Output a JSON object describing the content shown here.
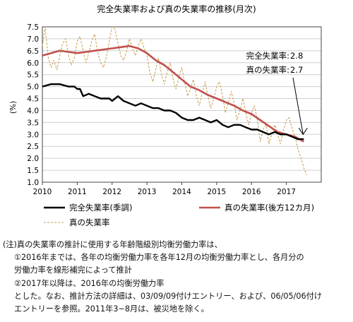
{
  "chart_data": {
    "type": "line",
    "title": "完全失業率および真の失業率の推移(月次)",
    "ylabel": "(%)",
    "xlabel": "",
    "ylim": [
      1.0,
      7.5
    ],
    "y_ticks": [
      "1.0",
      "1.5",
      "2.0",
      "2.5",
      "3.0",
      "3.5",
      "4.0",
      "4.5",
      "5.0",
      "5.5",
      "6.0",
      "6.5",
      "7.0",
      "7.5"
    ],
    "x_range": [
      2010.0,
      2018.0
    ],
    "x_ticks": [
      "2010",
      "2011",
      "2012",
      "2013",
      "2014",
      "2015",
      "2016",
      "2017"
    ],
    "grid": true,
    "legend_position": "bottom",
    "series": [
      {
        "name": "完全失業率(季調)",
        "color": "#000000",
        "style": "solid",
        "points": [
          [
            2010.0,
            5.0
          ],
          [
            2010.25,
            5.1
          ],
          [
            2010.5,
            5.1
          ],
          [
            2010.75,
            5.0
          ],
          [
            2010.92,
            5.0
          ],
          [
            2011.0,
            4.9
          ],
          [
            2011.08,
            4.9
          ],
          [
            2011.17,
            4.6
          ],
          [
            2011.33,
            4.7
          ],
          [
            2011.5,
            4.6
          ],
          [
            2011.67,
            4.5
          ],
          [
            2011.83,
            4.5
          ],
          [
            2011.92,
            4.5
          ],
          [
            2012.0,
            4.4
          ],
          [
            2012.17,
            4.6
          ],
          [
            2012.33,
            4.4
          ],
          [
            2012.5,
            4.3
          ],
          [
            2012.67,
            4.2
          ],
          [
            2012.83,
            4.3
          ],
          [
            2013.0,
            4.2
          ],
          [
            2013.17,
            4.1
          ],
          [
            2013.33,
            4.1
          ],
          [
            2013.5,
            4.0
          ],
          [
            2013.67,
            4.0
          ],
          [
            2013.83,
            3.9
          ],
          [
            2014.0,
            3.7
          ],
          [
            2014.17,
            3.6
          ],
          [
            2014.33,
            3.6
          ],
          [
            2014.5,
            3.7
          ],
          [
            2014.67,
            3.6
          ],
          [
            2014.83,
            3.5
          ],
          [
            2015.0,
            3.6
          ],
          [
            2015.17,
            3.4
          ],
          [
            2015.33,
            3.3
          ],
          [
            2015.5,
            3.4
          ],
          [
            2015.67,
            3.4
          ],
          [
            2015.83,
            3.3
          ],
          [
            2016.0,
            3.2
          ],
          [
            2016.17,
            3.2
          ],
          [
            2016.33,
            3.1
          ],
          [
            2016.5,
            3.0
          ],
          [
            2016.67,
            3.1
          ],
          [
            2016.83,
            3.0
          ],
          [
            2017.0,
            3.0
          ],
          [
            2017.17,
            2.9
          ],
          [
            2017.33,
            2.8
          ],
          [
            2017.5,
            2.8
          ]
        ]
      },
      {
        "name": "真の失業率(後方12カ月)",
        "color": "#c0504d",
        "style": "solid",
        "points": [
          [
            2010.0,
            6.3
          ],
          [
            2010.25,
            6.4
          ],
          [
            2010.5,
            6.5
          ],
          [
            2010.75,
            6.45
          ],
          [
            2011.0,
            6.4
          ],
          [
            2011.25,
            6.45
          ],
          [
            2011.5,
            6.5
          ],
          [
            2011.75,
            6.55
          ],
          [
            2012.0,
            6.6
          ],
          [
            2012.25,
            6.65
          ],
          [
            2012.5,
            6.7
          ],
          [
            2012.75,
            6.6
          ],
          [
            2013.0,
            6.4
          ],
          [
            2013.25,
            6.1
          ],
          [
            2013.5,
            5.9
          ],
          [
            2013.75,
            5.6
          ],
          [
            2014.0,
            5.3
          ],
          [
            2014.25,
            5.0
          ],
          [
            2014.5,
            4.85
          ],
          [
            2014.75,
            4.65
          ],
          [
            2015.0,
            4.5
          ],
          [
            2015.25,
            4.35
          ],
          [
            2015.5,
            4.2
          ],
          [
            2015.75,
            4.0
          ],
          [
            2016.0,
            3.85
          ],
          [
            2016.25,
            3.6
          ],
          [
            2016.5,
            3.35
          ],
          [
            2016.75,
            3.1
          ],
          [
            2017.0,
            3.0
          ],
          [
            2017.25,
            2.9
          ],
          [
            2017.5,
            2.7
          ]
        ]
      },
      {
        "name": "真の失業率",
        "color": "#c9a35a",
        "style": "dashed",
        "points": [
          [
            2010.0,
            6.7
          ],
          [
            2010.08,
            7.5
          ],
          [
            2010.17,
            6.2
          ],
          [
            2010.25,
            5.8
          ],
          [
            2010.33,
            6.1
          ],
          [
            2010.42,
            5.7
          ],
          [
            2010.5,
            6.3
          ],
          [
            2010.58,
            6.8
          ],
          [
            2010.67,
            7.0
          ],
          [
            2010.75,
            6.3
          ],
          [
            2010.83,
            5.9
          ],
          [
            2010.92,
            6.2
          ],
          [
            2011.0,
            6.9
          ],
          [
            2011.08,
            7.1
          ],
          [
            2011.17,
            6.5
          ],
          [
            2011.25,
            6.0
          ],
          [
            2011.33,
            6.4
          ],
          [
            2011.42,
            6.9
          ],
          [
            2011.5,
            7.2
          ],
          [
            2011.58,
            6.5
          ],
          [
            2011.67,
            6.0
          ],
          [
            2011.75,
            5.8
          ],
          [
            2011.83,
            6.2
          ],
          [
            2011.92,
            6.9
          ],
          [
            2012.0,
            7.5
          ],
          [
            2012.08,
            7.4
          ],
          [
            2012.17,
            6.8
          ],
          [
            2012.25,
            6.3
          ],
          [
            2012.33,
            6.1
          ],
          [
            2012.42,
            6.5
          ],
          [
            2012.5,
            7.0
          ],
          [
            2012.58,
            6.6
          ],
          [
            2012.67,
            6.3
          ],
          [
            2012.75,
            6.7
          ],
          [
            2012.83,
            7.0
          ],
          [
            2012.92,
            6.6
          ],
          [
            2013.0,
            6.3
          ],
          [
            2013.08,
            5.6
          ],
          [
            2013.17,
            5.2
          ],
          [
            2013.25,
            5.7
          ],
          [
            2013.33,
            6.2
          ],
          [
            2013.42,
            5.5
          ],
          [
            2013.5,
            5.1
          ],
          [
            2013.58,
            5.6
          ],
          [
            2013.67,
            6.0
          ],
          [
            2013.75,
            5.3
          ],
          [
            2013.83,
            4.9
          ],
          [
            2013.92,
            5.4
          ],
          [
            2014.0,
            5.8
          ],
          [
            2014.08,
            5.2
          ],
          [
            2014.17,
            4.6
          ],
          [
            2014.25,
            4.9
          ],
          [
            2014.33,
            5.3
          ],
          [
            2014.42,
            4.6
          ],
          [
            2014.5,
            4.2
          ],
          [
            2014.58,
            4.7
          ],
          [
            2014.67,
            5.2
          ],
          [
            2014.75,
            4.6
          ],
          [
            2014.83,
            4.1
          ],
          [
            2014.92,
            4.5
          ],
          [
            2015.0,
            5.0
          ],
          [
            2015.08,
            5.2
          ],
          [
            2015.17,
            4.6
          ],
          [
            2015.25,
            3.9
          ],
          [
            2015.33,
            4.3
          ],
          [
            2015.42,
            4.8
          ],
          [
            2015.5,
            4.3
          ],
          [
            2015.58,
            3.6
          ],
          [
            2015.67,
            4.0
          ],
          [
            2015.75,
            4.5
          ],
          [
            2015.83,
            3.9
          ],
          [
            2015.92,
            3.4
          ],
          [
            2016.0,
            3.9
          ],
          [
            2016.08,
            4.2
          ],
          [
            2016.17,
            3.6
          ],
          [
            2016.25,
            2.7
          ],
          [
            2016.33,
            3.2
          ],
          [
            2016.42,
            3.4
          ],
          [
            2016.5,
            2.6
          ],
          [
            2016.58,
            3.0
          ],
          [
            2016.67,
            3.4
          ],
          [
            2016.75,
            3.0
          ],
          [
            2016.83,
            2.6
          ],
          [
            2016.92,
            3.2
          ],
          [
            2017.0,
            3.6
          ],
          [
            2017.08,
            3.7
          ],
          [
            2017.17,
            3.2
          ],
          [
            2017.25,
            2.9
          ],
          [
            2017.33,
            2.4
          ],
          [
            2017.42,
            2.0
          ],
          [
            2017.5,
            1.6
          ],
          [
            2017.58,
            1.3
          ]
        ]
      }
    ],
    "annotations": [
      {
        "label": "完全失業率:",
        "value": "2.8"
      },
      {
        "label": "真の失業率:",
        "value": "2.7"
      }
    ]
  },
  "notes": [
    "(注)真の失業率の推計に使用する年齢階級別均衡労働力率は、",
    "①2016年までは、各年の均衡労働力率を各年12月の均衡労働力率とし、各月分の",
    "労働力率を線形補完によって推計",
    "②2017年以降は、2016年の均衡労働力率",
    "とした。なお、推計方法の詳細は、03/09/09付けエントリー、および、06/05/06付け",
    "エントリーを参照。2011年3~8月は、被災地を除く。"
  ]
}
